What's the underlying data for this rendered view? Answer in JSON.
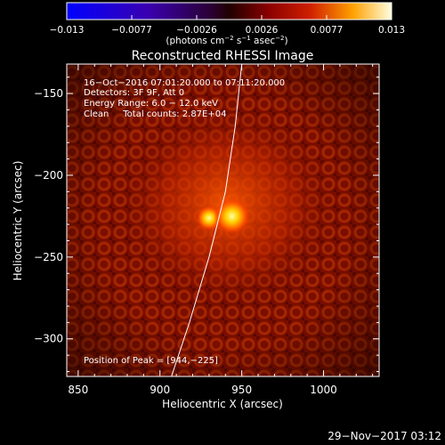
{
  "title": "Reconstructed RHESSI Image",
  "colorbar": {
    "ticks": [
      "−0.013",
      "−0.0077",
      "−0.0026",
      "0.0026",
      "0.0077",
      "0.013"
    ],
    "unit_parts": [
      "(photons cm",
      "−2",
      " s",
      "−1",
      " asec",
      "−2",
      ")"
    ],
    "vmin": -0.013,
    "vmax": 0.013
  },
  "annotations": [
    "16−Oct−2016 07:01:20.000 to 07:11:20.000",
    "Detectors: 3F 9F, Att 0",
    "Energy Range: 6.0 − 12.0 keV",
    "Clean     Total counts: 2.87E+04"
  ],
  "peak_label": "Position of Peak = [944,−225]",
  "xaxis": {
    "label": "Heliocentric X (arcsec)",
    "range": [
      843,
      1034
    ],
    "ticks": [
      850,
      900,
      950,
      1000
    ]
  },
  "yaxis": {
    "label": "Heliocentric Y (arcsec)",
    "range": [
      -323,
      -132
    ],
    "ticks": [
      -150,
      -200,
      -250,
      -300
    ]
  },
  "peak": {
    "x": 944,
    "y": -225
  },
  "secondary_source": {
    "x": 930,
    "y": -225
  },
  "limb_curve": [
    [
      950,
      -132
    ],
    [
      946,
      -170
    ],
    [
      940,
      -210
    ],
    [
      930,
      -250
    ],
    [
      918,
      -290
    ],
    [
      907,
      -323
    ]
  ],
  "footer": "29−Nov−2017 03:12"
}
